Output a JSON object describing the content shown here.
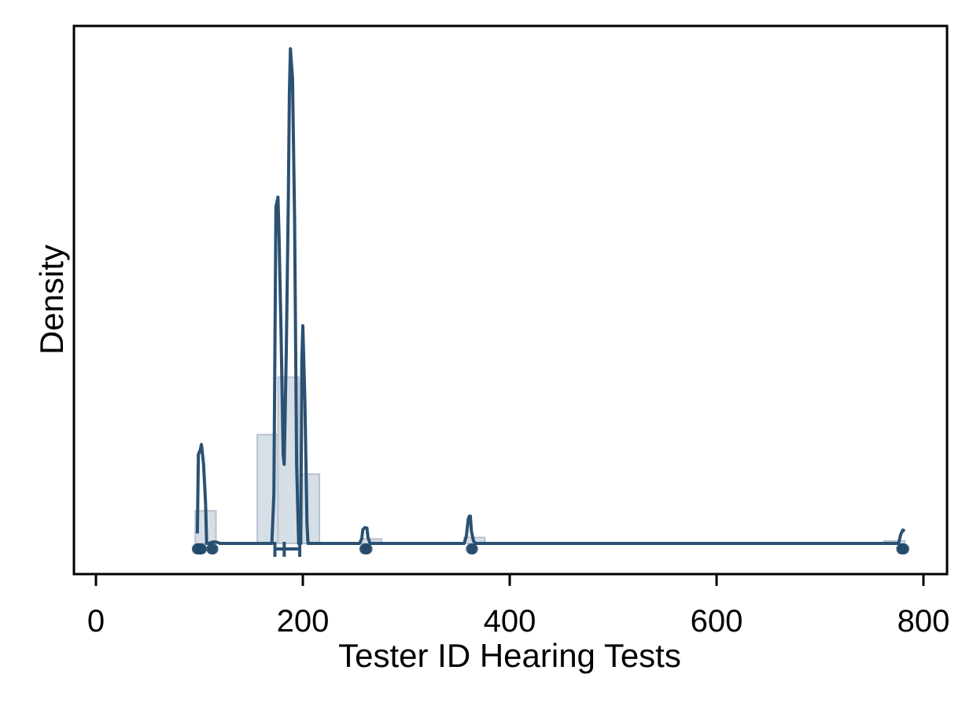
{
  "chart_data": {
    "type": "area",
    "xlabel": "Tester ID Hearing Tests",
    "ylabel": "Density",
    "xlim": [
      -10,
      820
    ],
    "ylim": [
      0,
      1.0
    ],
    "x_ticks": [
      0,
      200,
      400,
      600,
      800
    ],
    "y_ticks_shown": false,
    "grid": false,
    "legend": "none",
    "colors": {
      "line": "#2b5173",
      "bar_fill": "#ccd6e0",
      "bar_edge": "#b7c3cf",
      "point": "#234a6b"
    },
    "histogram": {
      "bin_edges": [
        96,
        116,
        156,
        176,
        196,
        216,
        256,
        276,
        356,
        376,
        762,
        782
      ],
      "bins": [
        {
          "x0": 96,
          "x1": 116,
          "height": 0.066
        },
        {
          "x0": 156,
          "x1": 176,
          "height": 0.22
        },
        {
          "x0": 176,
          "x1": 196,
          "height": 0.336
        },
        {
          "x0": 196,
          "x1": 216,
          "height": 0.14
        },
        {
          "x0": 256,
          "x1": 276,
          "height": 0.009
        },
        {
          "x0": 356,
          "x1": 376,
          "height": 0.012
        },
        {
          "x0": 762,
          "x1": 782,
          "height": 0.005
        }
      ]
    },
    "density_series": {
      "x": [
        98,
        99,
        101,
        102,
        104,
        106,
        107,
        109,
        113,
        116,
        120,
        168,
        170,
        172,
        174,
        175,
        176,
        177,
        179,
        181,
        182,
        184,
        186,
        187,
        188,
        190,
        192,
        194,
        196,
        198,
        199,
        200,
        202,
        204,
        205,
        207,
        255,
        257,
        258,
        260,
        262,
        263,
        265,
        356,
        358,
        360,
        361,
        362,
        363,
        365,
        367,
        774,
        776,
        778,
        780,
        782
      ],
      "y": [
        0.02,
        0.18,
        0.19,
        0.2,
        0.16,
        0.08,
        0.0,
        0.0,
        0.003,
        0.003,
        0.0,
        0.0,
        0.0,
        0.1,
        0.68,
        0.69,
        0.7,
        0.62,
        0.42,
        0.18,
        0.16,
        0.39,
        0.7,
        0.91,
        1.0,
        0.94,
        0.66,
        0.16,
        0.0,
        0.0,
        0.37,
        0.44,
        0.29,
        0.04,
        0.0,
        0.0,
        0.0,
        0.01,
        0.028,
        0.032,
        0.031,
        0.012,
        0.0,
        0.0,
        0.014,
        0.05,
        0.055,
        0.055,
        0.025,
        0.005,
        0.0,
        0.0,
        0.0,
        0.018,
        0.027,
        0.025
      ]
    },
    "observations": [
      98,
      99,
      100,
      101,
      102,
      112,
      113,
      260,
      261,
      262,
      363,
      364,
      779,
      780,
      781
    ],
    "median_box": {
      "q1": 173,
      "median": 182,
      "q3": 197
    }
  }
}
